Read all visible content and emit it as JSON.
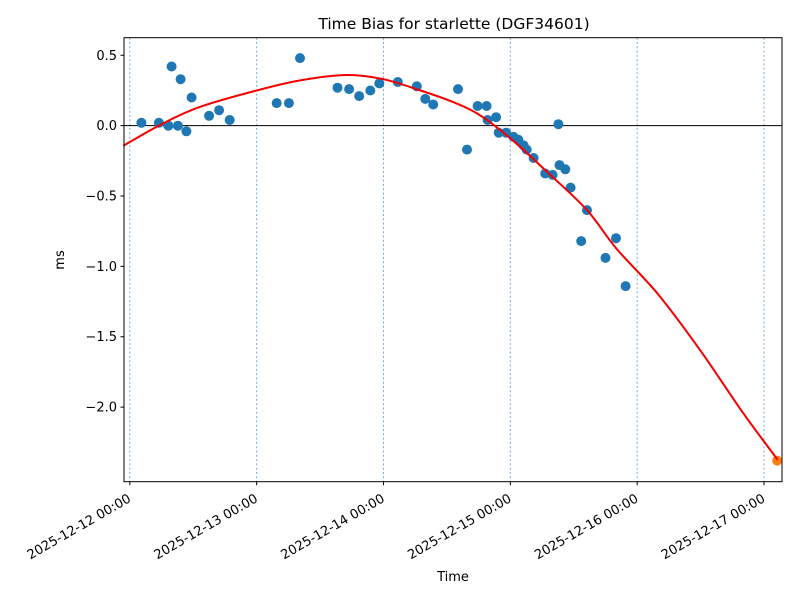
{
  "chart_data": {
    "type": "scatter",
    "title": "Time Bias for starlette (DGF34601)",
    "xlabel": "Time",
    "ylabel": "ms",
    "x_axis": {
      "unit": "hours since 2025-12-12 00:00",
      "range_hours": [
        -1.1,
        123.4
      ],
      "ticks": [
        {
          "hours": 0,
          "label": "2025-12-12 00:00"
        },
        {
          "hours": 24,
          "label": "2025-12-13 00:00"
        },
        {
          "hours": 48,
          "label": "2025-12-14 00:00"
        },
        {
          "hours": 72,
          "label": "2025-12-15 00:00"
        },
        {
          "hours": 96,
          "label": "2025-12-16 00:00"
        },
        {
          "hours": 120,
          "label": "2025-12-17 00:00"
        }
      ],
      "gridlines": true,
      "tick_rotation_deg": 30
    },
    "y_axis": {
      "range": [
        -2.53,
        0.625
      ],
      "ticks": [
        {
          "value": 0.5,
          "label": "0.5"
        },
        {
          "value": 0.0,
          "label": "0.0"
        },
        {
          "value": -0.5,
          "label": "−0.5"
        },
        {
          "value": -1.0,
          "label": "−1.0"
        },
        {
          "value": -1.5,
          "label": "−1.5"
        },
        {
          "value": -2.0,
          "label": "−2.0"
        }
      ],
      "gridlines": false
    },
    "zero_line": {
      "value": 0.0,
      "color": "#000000"
    },
    "grid_color": "#6c9fd4",
    "legend": "none",
    "series": [
      {
        "name": "time-bias-observations",
        "type": "scatter",
        "color": "#1f77b4",
        "marker_radius": 5,
        "points_hours_ms": [
          [
            2.2,
            0.02
          ],
          [
            5.5,
            0.02
          ],
          [
            7.3,
            0.0
          ],
          [
            7.9,
            0.42
          ],
          [
            9.1,
            0.0
          ],
          [
            9.6,
            0.33
          ],
          [
            10.7,
            -0.04
          ],
          [
            11.7,
            0.2
          ],
          [
            15.0,
            0.07
          ],
          [
            16.9,
            0.11
          ],
          [
            18.9,
            0.04
          ],
          [
            27.8,
            0.16
          ],
          [
            30.1,
            0.16
          ],
          [
            32.2,
            0.48
          ],
          [
            39.3,
            0.27
          ],
          [
            41.5,
            0.26
          ],
          [
            43.4,
            0.21
          ],
          [
            45.5,
            0.25
          ],
          [
            47.2,
            0.3
          ],
          [
            50.7,
            0.31
          ],
          [
            54.3,
            0.28
          ],
          [
            55.9,
            0.19
          ],
          [
            57.4,
            0.15
          ],
          [
            62.1,
            0.26
          ],
          [
            63.8,
            -0.17
          ],
          [
            65.8,
            0.14
          ],
          [
            67.5,
            0.14
          ],
          [
            67.7,
            0.04
          ],
          [
            69.3,
            0.06
          ],
          [
            69.8,
            -0.05
          ],
          [
            71.2,
            -0.05
          ],
          [
            72.6,
            -0.08
          ],
          [
            73.5,
            -0.1
          ],
          [
            74.5,
            -0.14
          ],
          [
            75.1,
            -0.17
          ],
          [
            76.4,
            -0.23
          ],
          [
            78.6,
            -0.34
          ],
          [
            80.0,
            -0.35
          ],
          [
            81.1,
            0.01
          ],
          [
            81.3,
            -0.28
          ],
          [
            82.4,
            -0.31
          ],
          [
            83.4,
            -0.44
          ],
          [
            85.4,
            -0.82
          ],
          [
            86.5,
            -0.6
          ],
          [
            90.0,
            -0.94
          ],
          [
            92.0,
            -0.8
          ],
          [
            93.8,
            -1.14
          ]
        ]
      },
      {
        "name": "latest-observation",
        "type": "scatter",
        "color": "#ff7f0e",
        "marker_radius": 5,
        "points_hours_ms": [
          [
            122.5,
            -2.38
          ]
        ]
      },
      {
        "name": "polynomial-fit",
        "type": "line",
        "color": "#f40000",
        "line_width": 2,
        "points_hours_ms": [
          [
            -1.1,
            -0.14
          ],
          [
            6,
            0.01
          ],
          [
            13,
            0.13
          ],
          [
            24,
            0.25
          ],
          [
            32,
            0.32
          ],
          [
            41,
            0.36
          ],
          [
            48,
            0.33
          ],
          [
            55,
            0.25
          ],
          [
            61,
            0.17
          ],
          [
            66,
            0.08
          ],
          [
            72,
            -0.09
          ],
          [
            79,
            -0.33
          ],
          [
            86.5,
            -0.6
          ],
          [
            92,
            -0.87
          ],
          [
            100,
            -1.2
          ],
          [
            108,
            -1.6
          ],
          [
            116,
            -2.04
          ],
          [
            122.5,
            -2.37
          ]
        ]
      }
    ]
  }
}
